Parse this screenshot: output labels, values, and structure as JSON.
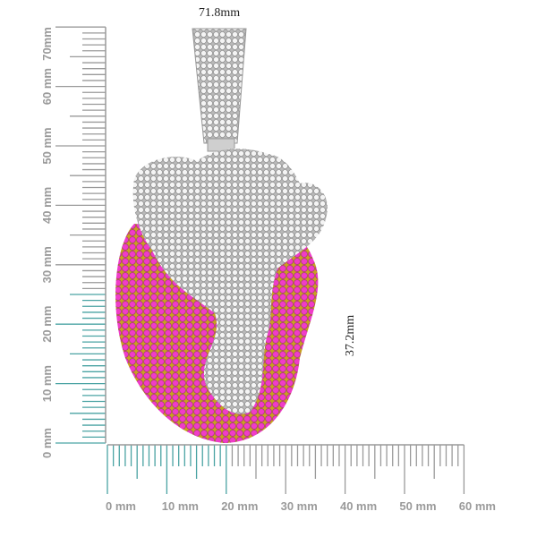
{
  "width_label": "71.8mm",
  "height_label": "37.2mm",
  "vertical_ruler": {
    "labels": [
      "0 mm",
      "10 mm",
      "20 mm",
      "30 mm",
      "40 mm",
      "50 mm",
      "60 mm",
      "70mm"
    ]
  },
  "horizontal_ruler": {
    "labels": [
      "0 mm",
      "10 mm",
      "20 mm",
      "30 mm",
      "40 mm",
      "50 mm",
      "60 mm"
    ]
  }
}
